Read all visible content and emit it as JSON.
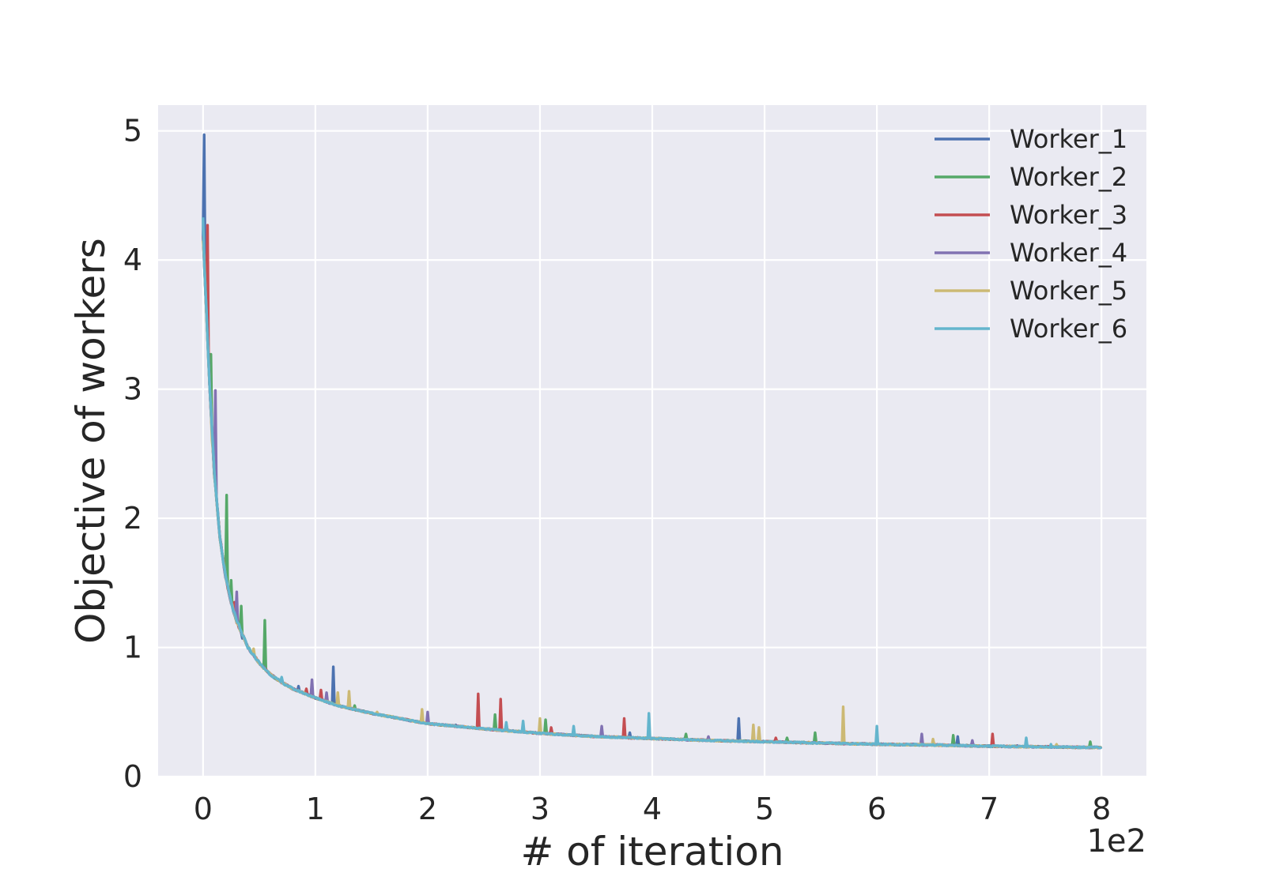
{
  "chart_data": {
    "type": "line",
    "title": "",
    "xlabel": "# of iteration",
    "ylabel": "Objective of workers",
    "x_offset_label": "1e2",
    "xlim": [
      -0.4,
      8.4
    ],
    "ylim": [
      0,
      5.2
    ],
    "x_ticks": [
      0,
      1,
      2,
      3,
      4,
      5,
      6,
      7,
      8
    ],
    "x_tick_labels": [
      "0",
      "1",
      "2",
      "3",
      "4",
      "5",
      "6",
      "7",
      "8"
    ],
    "y_ticks": [
      0,
      1,
      2,
      3,
      4,
      5
    ],
    "y_tick_labels": [
      "0",
      "1",
      "2",
      "3",
      "4",
      "5"
    ],
    "grid": true,
    "legend_position": "top-right",
    "background_color": "#eaeaf2",
    "baseline": {
      "x": [
        0,
        0.03,
        0.06,
        0.1,
        0.15,
        0.2,
        0.25,
        0.3,
        0.4,
        0.5,
        0.6,
        0.7,
        0.8,
        1.0,
        1.2,
        1.5,
        2.0,
        2.5,
        3.0,
        3.5,
        4.0,
        4.5,
        5.0,
        5.5,
        6.0,
        6.5,
        7.0,
        7.5,
        8.0
      ],
      "y": [
        4.2,
        3.6,
        3.0,
        2.35,
        1.85,
        1.55,
        1.35,
        1.2,
        1.0,
        0.88,
        0.79,
        0.73,
        0.68,
        0.61,
        0.55,
        0.49,
        0.41,
        0.37,
        0.335,
        0.31,
        0.295,
        0.28,
        0.27,
        0.26,
        0.25,
        0.245,
        0.235,
        0.23,
        0.225
      ]
    },
    "series": [
      {
        "name": "Worker_1",
        "color": "#4c72b0",
        "spikes": [
          [
            0.01,
            4.97
          ],
          [
            0.35,
            1.07
          ],
          [
            0.85,
            0.7
          ],
          [
            1.16,
            0.85
          ],
          [
            2.25,
            0.4
          ],
          [
            3.8,
            0.34
          ],
          [
            4.77,
            0.45
          ],
          [
            6.0,
            0.28
          ],
          [
            6.72,
            0.31
          ],
          [
            7.25,
            0.24
          ]
        ]
      },
      {
        "name": "Worker_2",
        "color": "#55a868",
        "spikes": [
          [
            0.07,
            3.27
          ],
          [
            0.21,
            2.18
          ],
          [
            0.25,
            1.52
          ],
          [
            0.34,
            1.32
          ],
          [
            0.55,
            1.21
          ],
          [
            1.35,
            0.55
          ],
          [
            2.6,
            0.48
          ],
          [
            3.05,
            0.44
          ],
          [
            4.3,
            0.33
          ],
          [
            5.2,
            0.3
          ],
          [
            5.45,
            0.34
          ],
          [
            6.68,
            0.32
          ],
          [
            7.9,
            0.27
          ]
        ]
      },
      {
        "name": "Worker_3",
        "color": "#c44e52",
        "spikes": [
          [
            0.04,
            4.27
          ],
          [
            0.28,
            1.35
          ],
          [
            0.92,
            0.68
          ],
          [
            1.05,
            0.67
          ],
          [
            2.45,
            0.64
          ],
          [
            2.65,
            0.6
          ],
          [
            3.1,
            0.38
          ],
          [
            3.75,
            0.45
          ],
          [
            5.1,
            0.3
          ],
          [
            7.03,
            0.33
          ]
        ]
      },
      {
        "name": "Worker_4",
        "color": "#8172b2",
        "spikes": [
          [
            0.11,
            2.99
          ],
          [
            0.3,
            1.43
          ],
          [
            0.97,
            0.75
          ],
          [
            1.1,
            0.65
          ],
          [
            2.0,
            0.5
          ],
          [
            3.55,
            0.39
          ],
          [
            4.5,
            0.31
          ],
          [
            6.4,
            0.33
          ],
          [
            6.85,
            0.28
          ]
        ]
      },
      {
        "name": "Worker_5",
        "color": "#ccb974",
        "spikes": [
          [
            0.0,
            4.15
          ],
          [
            0.08,
            2.6
          ],
          [
            0.45,
            0.99
          ],
          [
            1.2,
            0.65
          ],
          [
            1.3,
            0.66
          ],
          [
            1.55,
            0.5
          ],
          [
            1.95,
            0.52
          ],
          [
            3.0,
            0.45
          ],
          [
            4.9,
            0.4
          ],
          [
            4.95,
            0.38
          ],
          [
            5.7,
            0.54
          ],
          [
            6.5,
            0.29
          ],
          [
            7.6,
            0.25
          ]
        ]
      },
      {
        "name": "Worker_6",
        "color": "#64b5cd",
        "spikes": [
          [
            0.0,
            4.33
          ],
          [
            0.06,
            3.0
          ],
          [
            0.32,
            1.18
          ],
          [
            0.7,
            0.77
          ],
          [
            2.7,
            0.42
          ],
          [
            2.85,
            0.43
          ],
          [
            3.3,
            0.39
          ],
          [
            3.97,
            0.49
          ],
          [
            6.0,
            0.39
          ],
          [
            7.33,
            0.3
          ],
          [
            7.55,
            0.25
          ]
        ]
      }
    ]
  }
}
